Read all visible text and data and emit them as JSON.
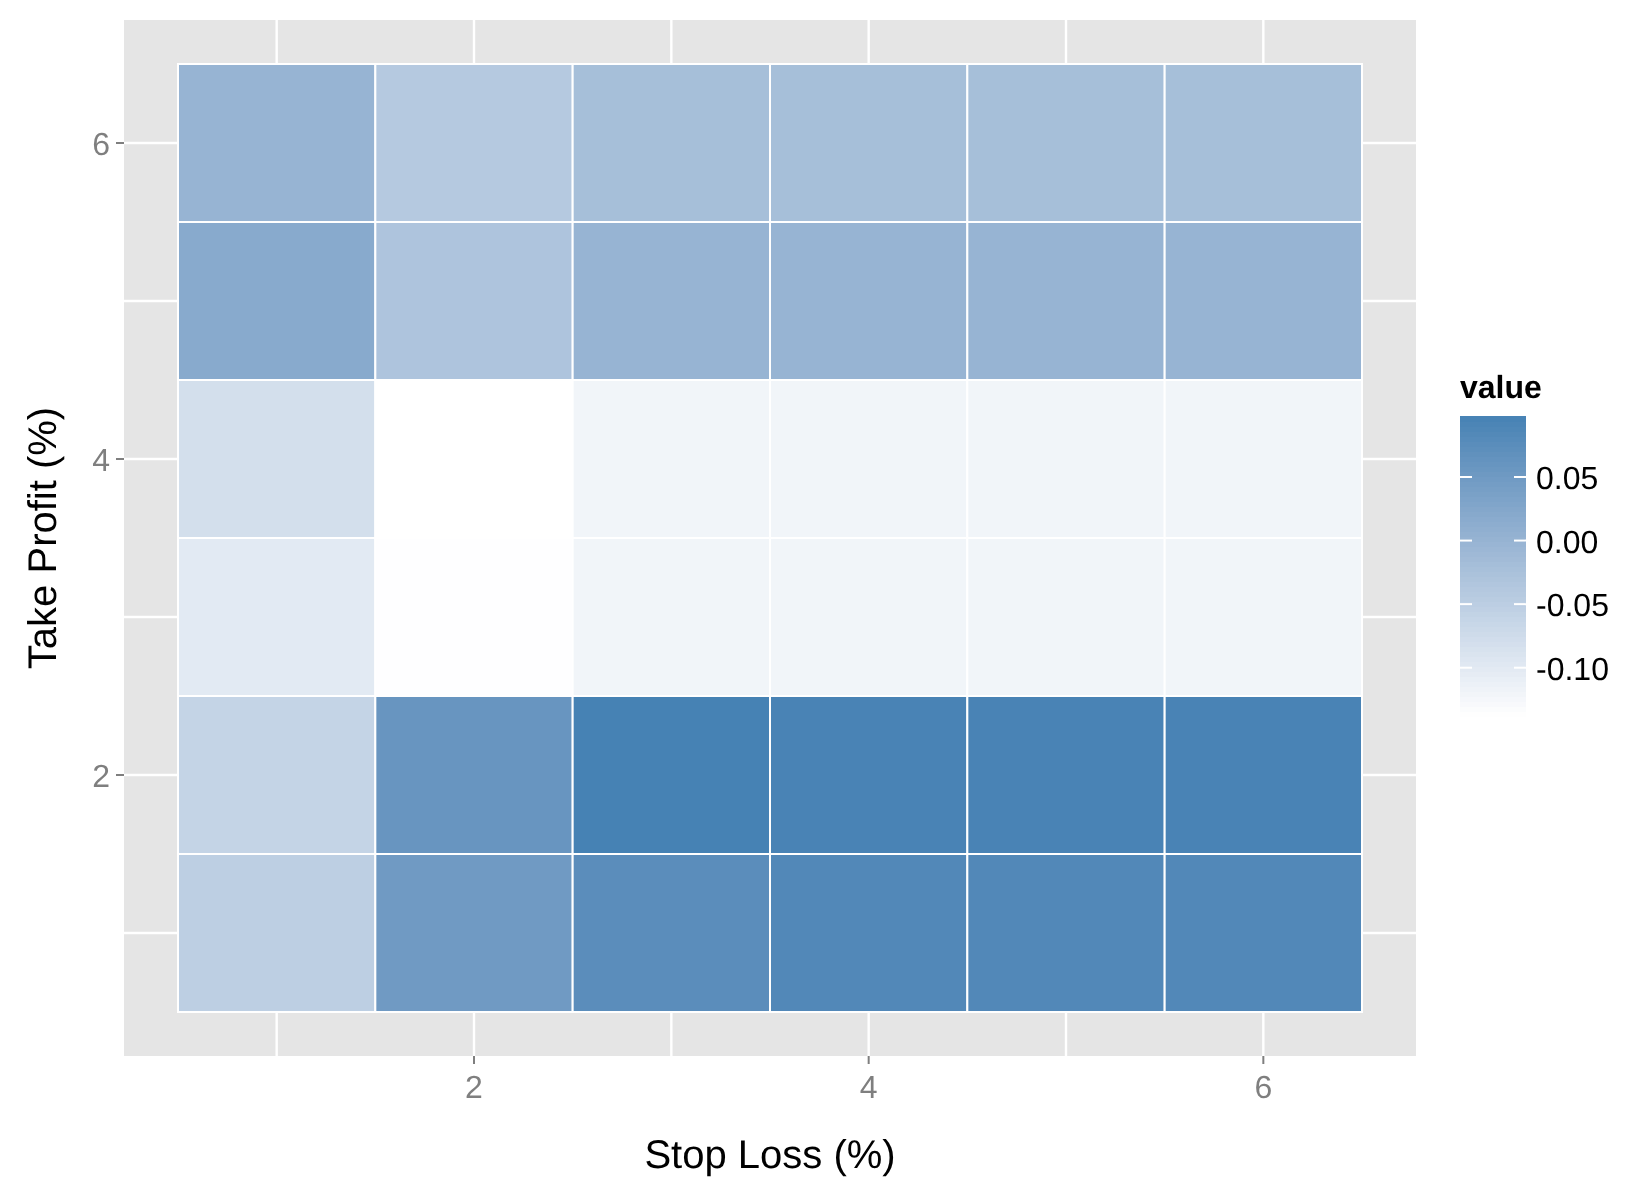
{
  "chart_data": {
    "type": "heatmap",
    "xlabel": "Stop Loss (%)",
    "ylabel": "Take Profit (%)",
    "legend_title": "value",
    "categories": [
      null,
      "2",
      null,
      "4",
      null,
      "6"
    ],
    "y_categories": [
      "6",
      null,
      "4",
      null,
      "2",
      null
    ],
    "cells": [
      [
        0.0,
        -0.04,
        -0.02,
        -0.02,
        -0.02,
        -0.02
      ],
      [
        0.02,
        -0.03,
        0.0,
        0.0,
        0.0,
        0.0
      ],
      [
        -0.08,
        -0.138,
        -0.12,
        -0.12,
        -0.12,
        -0.12
      ],
      [
        -0.1,
        -0.137,
        -0.12,
        -0.12,
        -0.12,
        -0.12
      ],
      [
        -0.06,
        0.06,
        0.098,
        0.095,
        0.095,
        0.095
      ],
      [
        -0.05,
        0.05,
        0.075,
        0.085,
        0.085,
        0.085
      ]
    ],
    "colors": [
      "#ffffff",
      "#4682b4"
    ],
    "clim": [
      -0.138,
      0.098
    ],
    "cticks": [
      {
        "value": -0.1,
        "label": "-0.10"
      },
      {
        "value": -0.05,
        "label": "-0.05"
      },
      {
        "value": 0,
        "label": "0.00"
      },
      {
        "value": 0.05,
        "label": "0.05"
      }
    ],
    "grid": true
  }
}
